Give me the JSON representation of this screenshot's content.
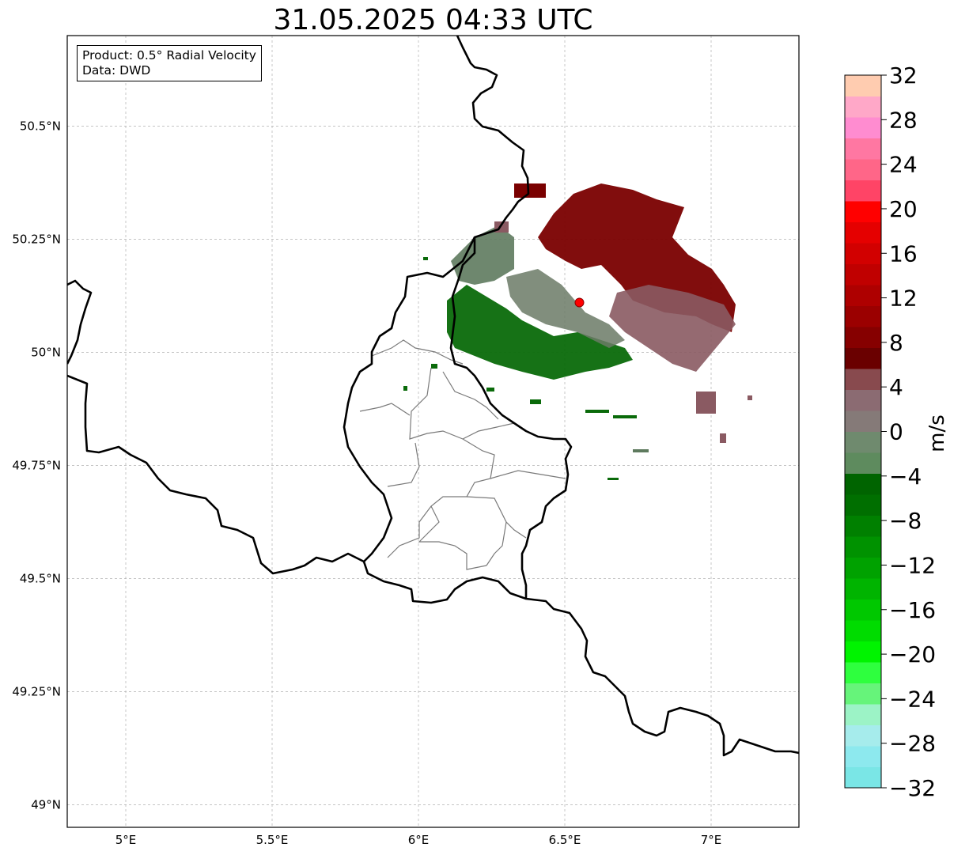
{
  "title": "31.05.2025 04:33 UTC",
  "info": {
    "product": "Product: 0.5° Radial Velocity",
    "source": "Data: DWD"
  },
  "map": {
    "lon_range": [
      4.8,
      7.3
    ],
    "lat_range": [
      48.95,
      50.7
    ],
    "lon_ticks": [
      {
        "value": 5.0,
        "label": "5°E"
      },
      {
        "value": 5.5,
        "label": "5.5°E"
      },
      {
        "value": 6.0,
        "label": "6°E"
      },
      {
        "value": 6.5,
        "label": "6.5°E"
      },
      {
        "value": 7.0,
        "label": "7°E"
      }
    ],
    "lat_ticks": [
      {
        "value": 49.0,
        "label": "49°N"
      },
      {
        "value": 49.25,
        "label": "49.25°N"
      },
      {
        "value": 49.5,
        "label": "49.5°N"
      },
      {
        "value": 49.75,
        "label": "49.75°N"
      },
      {
        "value": 50.0,
        "label": "50°N"
      },
      {
        "value": 50.25,
        "label": "50.25°N"
      },
      {
        "value": 50.5,
        "label": "50.5°N"
      }
    ],
    "grid": true,
    "radar_site": {
      "lon": 6.55,
      "lat": 50.11,
      "color": "#ff0000"
    }
  },
  "colorbar": {
    "unit": "m/s",
    "min": -32,
    "max": 32,
    "ticks": [
      {
        "value": 32,
        "label": "32"
      },
      {
        "value": 28,
        "label": "28"
      },
      {
        "value": 24,
        "label": "24"
      },
      {
        "value": 20,
        "label": "20"
      },
      {
        "value": 16,
        "label": "16"
      },
      {
        "value": 12,
        "label": "12"
      },
      {
        "value": 8,
        "label": "8"
      },
      {
        "value": 4,
        "label": "4"
      },
      {
        "value": 0,
        "label": "0"
      },
      {
        "value": -4,
        "label": "−4"
      },
      {
        "value": -8,
        "label": "−8"
      },
      {
        "value": -12,
        "label": "−12"
      },
      {
        "value": -16,
        "label": "−16"
      },
      {
        "value": -20,
        "label": "−20"
      },
      {
        "value": -24,
        "label": "−24"
      },
      {
        "value": -28,
        "label": "−28"
      },
      {
        "value": -32,
        "label": "−32"
      }
    ],
    "colors": [
      "#7ae6e6",
      "#8de9ee",
      "#a6ecec",
      "#9cf3c6",
      "#66f47a",
      "#2eff3e",
      "#00f400",
      "#00dc00",
      "#00c800",
      "#00b400",
      "#00a200",
      "#009200",
      "#008000",
      "#006f00",
      "#006400",
      "#5e8b5e",
      "#6f8a6e",
      "#857a78",
      "#8b6b72",
      "#884a4e",
      "#6a0000",
      "#860000",
      "#9b0000",
      "#ae0000",
      "#c00000",
      "#d20000",
      "#e50000",
      "#ff0000",
      "#ff4466",
      "#ff6688",
      "#ff77a2",
      "#ff8cd0",
      "#ffa8c8",
      "#ffccb0"
    ]
  }
}
